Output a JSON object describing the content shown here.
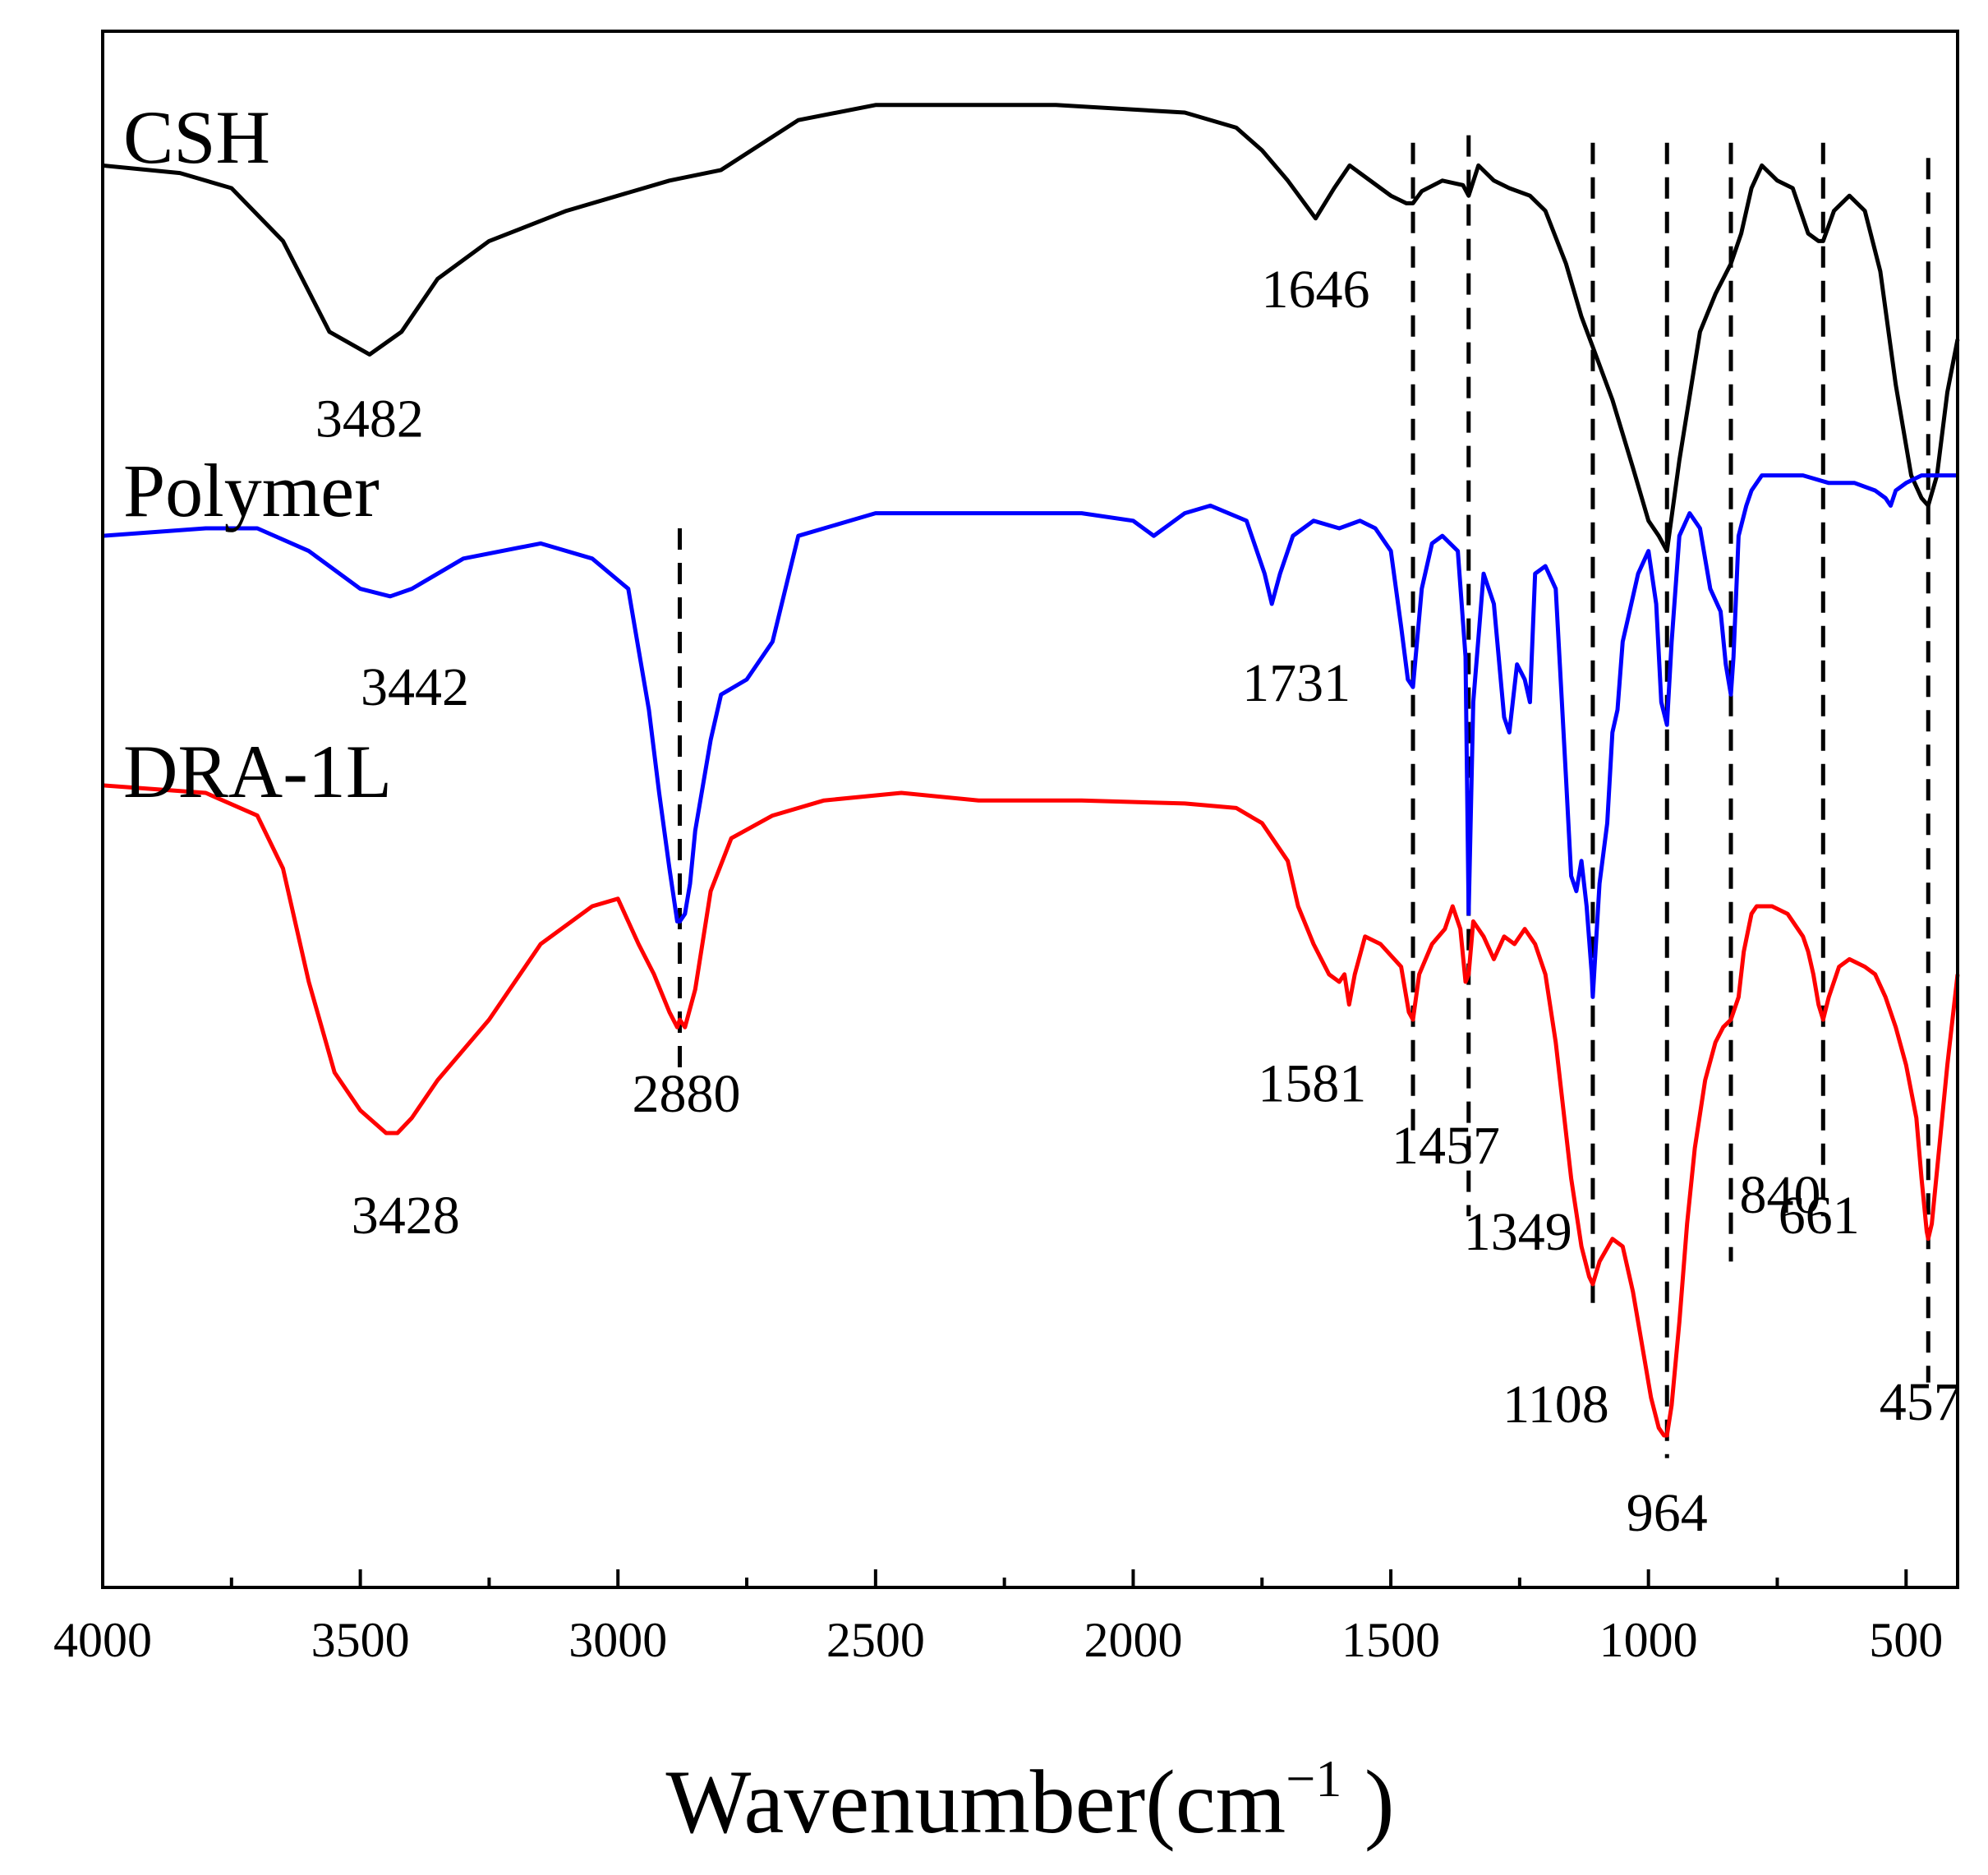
{
  "chart_data": {
    "type": "line",
    "title": "",
    "xlabel": "Wavenumber(cm",
    "xlabel_superscript": "−1",
    "xlabel_close": " )",
    "ylabel": "",
    "xlim": [
      4000,
      400
    ],
    "x_reversed": true,
    "x_ticks": [
      4000,
      3500,
      3000,
      2500,
      2000,
      1500,
      1000,
      500
    ],
    "x_tick_labels": [
      "4000",
      "3500",
      "3000",
      "2500",
      "2000",
      "1500",
      "1000",
      "500"
    ],
    "ylim": [
      0,
      100
    ],
    "y_ticks_shown": false,
    "grid": false,
    "series": [
      {
        "name": "CSH",
        "color": "#000000",
        "x": [
          4000,
          3850,
          3750,
          3650,
          3560,
          3482,
          3420,
          3350,
          3250,
          3100,
          2900,
          2800,
          2650,
          2500,
          2300,
          2150,
          1900,
          1800,
          1750,
          1700,
          1646,
          1610,
          1580,
          1540,
          1500,
          1470,
          1457,
          1440,
          1400,
          1360,
          1349,
          1330,
          1300,
          1270,
          1230,
          1200,
          1160,
          1130,
          1108,
          1070,
          1030,
          1000,
          980,
          964,
          940,
          900,
          870,
          840,
          820,
          800,
          780,
          750,
          720,
          690,
          670,
          661,
          640,
          610,
          580,
          550,
          520,
          490,
          470,
          457,
          440,
          420,
          400
        ],
        "y": [
          91.5,
          91.0,
          90.0,
          86.5,
          80.5,
          79.0,
          80.5,
          84.0,
          86.5,
          88.5,
          90.5,
          91.2,
          94.5,
          95.5,
          95.5,
          95.5,
          95.0,
          94.0,
          92.5,
          90.5,
          88.0,
          90.0,
          91.5,
          90.5,
          89.5,
          89.0,
          89.0,
          89.8,
          90.5,
          90.2,
          89.5,
          91.5,
          90.5,
          90.0,
          89.5,
          88.5,
          85.0,
          81.5,
          79.5,
          76.0,
          71.5,
          68.0,
          67.0,
          66.0,
          72.0,
          80.5,
          83.0,
          85.0,
          87.0,
          90.0,
          91.5,
          90.5,
          90.0,
          87.0,
          86.5,
          86.5,
          88.5,
          89.5,
          88.5,
          84.5,
          77.0,
          71.0,
          69.5,
          69.0,
          71.0,
          76.5,
          80.0
        ]
      },
      {
        "name": "Polymer",
        "color": "#0000ff",
        "x": [
          4000,
          3800,
          3700,
          3600,
          3500,
          3442,
          3400,
          3300,
          3150,
          3050,
          2980,
          2960,
          2940,
          2920,
          2900,
          2885,
          2880,
          2870,
          2860,
          2850,
          2820,
          2800,
          2750,
          2700,
          2650,
          2500,
          2300,
          2100,
          2000,
          1960,
          1900,
          1850,
          1780,
          1745,
          1731,
          1715,
          1690,
          1650,
          1600,
          1560,
          1530,
          1500,
          1480,
          1467,
          1457,
          1440,
          1420,
          1400,
          1370,
          1355,
          1349,
          1340,
          1320,
          1300,
          1280,
          1270,
          1255,
          1240,
          1230,
          1220,
          1200,
          1180,
          1160,
          1150,
          1140,
          1130,
          1120,
          1110,
          1108,
          1095,
          1080,
          1070,
          1060,
          1050,
          1040,
          1020,
          1000,
          985,
          975,
          964,
          955,
          940,
          920,
          900,
          880,
          860,
          850,
          840,
          835,
          825,
          810,
          800,
          780,
          750,
          700,
          650,
          600,
          560,
          540,
          530,
          520,
          500,
          470,
          457,
          440,
          420,
          400
        ],
        "y": [
          67.0,
          67.5,
          67.5,
          66.0,
          63.5,
          63.0,
          63.5,
          65.5,
          66.5,
          65.5,
          63.5,
          59.5,
          55.5,
          50.0,
          45.0,
          41.5,
          41.5,
          42.0,
          44.0,
          47.5,
          53.5,
          56.5,
          57.5,
          60.0,
          67.0,
          68.5,
          68.5,
          68.5,
          68.0,
          67.0,
          68.5,
          69.0,
          68.0,
          64.5,
          62.5,
          64.5,
          67.0,
          68.0,
          67.5,
          68.0,
          67.5,
          66.0,
          61.0,
          57.5,
          57.0,
          63.5,
          66.5,
          67.0,
          66.0,
          59.0,
          42.0,
          56.0,
          64.5,
          62.5,
          55.0,
          54.0,
          58.5,
          57.5,
          56.0,
          64.5,
          65.0,
          63.5,
          51.0,
          44.5,
          43.5,
          45.5,
          42.5,
          38.0,
          36.5,
          44.0,
          48.0,
          54.0,
          55.5,
          60.0,
          61.5,
          64.5,
          66.0,
          62.5,
          56.0,
          54.5,
          60.0,
          67.0,
          68.5,
          67.5,
          63.5,
          62.0,
          58.5,
          56.5,
          59.0,
          67.0,
          69.0,
          70.0,
          71.0,
          71.0,
          71.0,
          70.5,
          70.5,
          70.0,
          69.5,
          69.0,
          70.0,
          70.5,
          71.0,
          71.0,
          71.0,
          71.0,
          71.0
        ]
      },
      {
        "name": "DRA-1L",
        "color": "#ff0000",
        "x": [
          4000,
          3800,
          3700,
          3650,
          3600,
          3550,
          3500,
          3450,
          3428,
          3400,
          3350,
          3250,
          3150,
          3050,
          3000,
          2960,
          2930,
          2900,
          2885,
          2880,
          2870,
          2850,
          2820,
          2780,
          2700,
          2600,
          2450,
          2300,
          2100,
          1900,
          1800,
          1750,
          1700,
          1680,
          1650,
          1620,
          1600,
          1590,
          1581,
          1570,
          1550,
          1520,
          1480,
          1465,
          1457,
          1445,
          1420,
          1395,
          1380,
          1365,
          1355,
          1349,
          1340,
          1320,
          1300,
          1280,
          1260,
          1240,
          1220,
          1200,
          1180,
          1165,
          1150,
          1130,
          1115,
          1108,
          1095,
          1070,
          1050,
          1030,
          1010,
          995,
          980,
          970,
          964,
          955,
          940,
          925,
          910,
          890,
          870,
          855,
          840,
          825,
          815,
          800,
          790,
          760,
          730,
          700,
          690,
          680,
          670,
          661,
          650,
          630,
          610,
          580,
          560,
          540,
          520,
          500,
          480,
          470,
          460,
          457,
          450,
          440,
          420,
          400
        ],
        "y": [
          50.5,
          50.0,
          48.5,
          45.0,
          37.5,
          31.5,
          29.0,
          27.5,
          27.5,
          28.5,
          31.0,
          35.0,
          40.0,
          42.5,
          43.0,
          40.0,
          38.0,
          35.5,
          34.5,
          35.0,
          34.5,
          37.0,
          43.5,
          47.0,
          48.5,
          49.5,
          50.0,
          49.5,
          49.5,
          49.3,
          49.0,
          48.0,
          45.5,
          42.5,
          40.0,
          38.0,
          37.5,
          38.0,
          36.0,
          38.0,
          40.5,
          40.0,
          38.5,
          35.5,
          35.0,
          38.0,
          40.0,
          41.0,
          42.5,
          41.0,
          37.5,
          38.0,
          41.5,
          40.5,
          39.0,
          40.5,
          40.0,
          41.0,
          40.0,
          38.0,
          33.5,
          29.0,
          24.5,
          20.0,
          18.0,
          17.5,
          19.0,
          20.5,
          20.0,
          17.0,
          13.0,
          10.0,
          8.0,
          7.5,
          7.5,
          9.5,
          15.0,
          21.5,
          26.5,
          31.0,
          33.5,
          34.5,
          35.0,
          36.5,
          39.5,
          42.0,
          42.5,
          42.5,
          42.0,
          40.5,
          39.5,
          38.0,
          36.0,
          35.0,
          36.5,
          38.5,
          39.0,
          38.5,
          38.0,
          36.5,
          34.5,
          32.0,
          28.5,
          24.5,
          21.0,
          20.5,
          21.5,
          25.0,
          32.0,
          38.0
        ]
      }
    ],
    "series_labels": [
      "CSH",
      "Polymer",
      "DRA-1L"
    ],
    "annotations": {
      "peak_labels": [
        {
          "text": "3482",
          "series": "CSH",
          "x": 3482
        },
        {
          "text": "1646",
          "series": "CSH",
          "x": 1646
        },
        {
          "text": "3442",
          "series": "Polymer",
          "x": 3442
        },
        {
          "text": "1731",
          "series": "Polymer",
          "x": 1731
        },
        {
          "text": "3428",
          "series": "DRA-1L",
          "x": 3428
        },
        {
          "text": "2880",
          "series": "DRA-1L",
          "x": 2880
        },
        {
          "text": "1581",
          "series": "DRA-1L",
          "x": 1581
        },
        {
          "text": "1457",
          "series": "DRA-1L",
          "x": 1457
        },
        {
          "text": "1349",
          "series": "DRA-1L",
          "x": 1349
        },
        {
          "text": "1108",
          "series": "DRA-1L",
          "x": 1108
        },
        {
          "text": "964",
          "series": "DRA-1L",
          "x": 964
        },
        {
          "text": "840",
          "series": "DRA-1L",
          "x": 840
        },
        {
          "text": "661",
          "series": "DRA-1L",
          "x": 661
        },
        {
          "text": "457",
          "series": "DRA-1L",
          "x": 457
        }
      ],
      "reference_lines": [
        2880,
        1457,
        1349,
        1108,
        964,
        840,
        661,
        457
      ]
    }
  }
}
